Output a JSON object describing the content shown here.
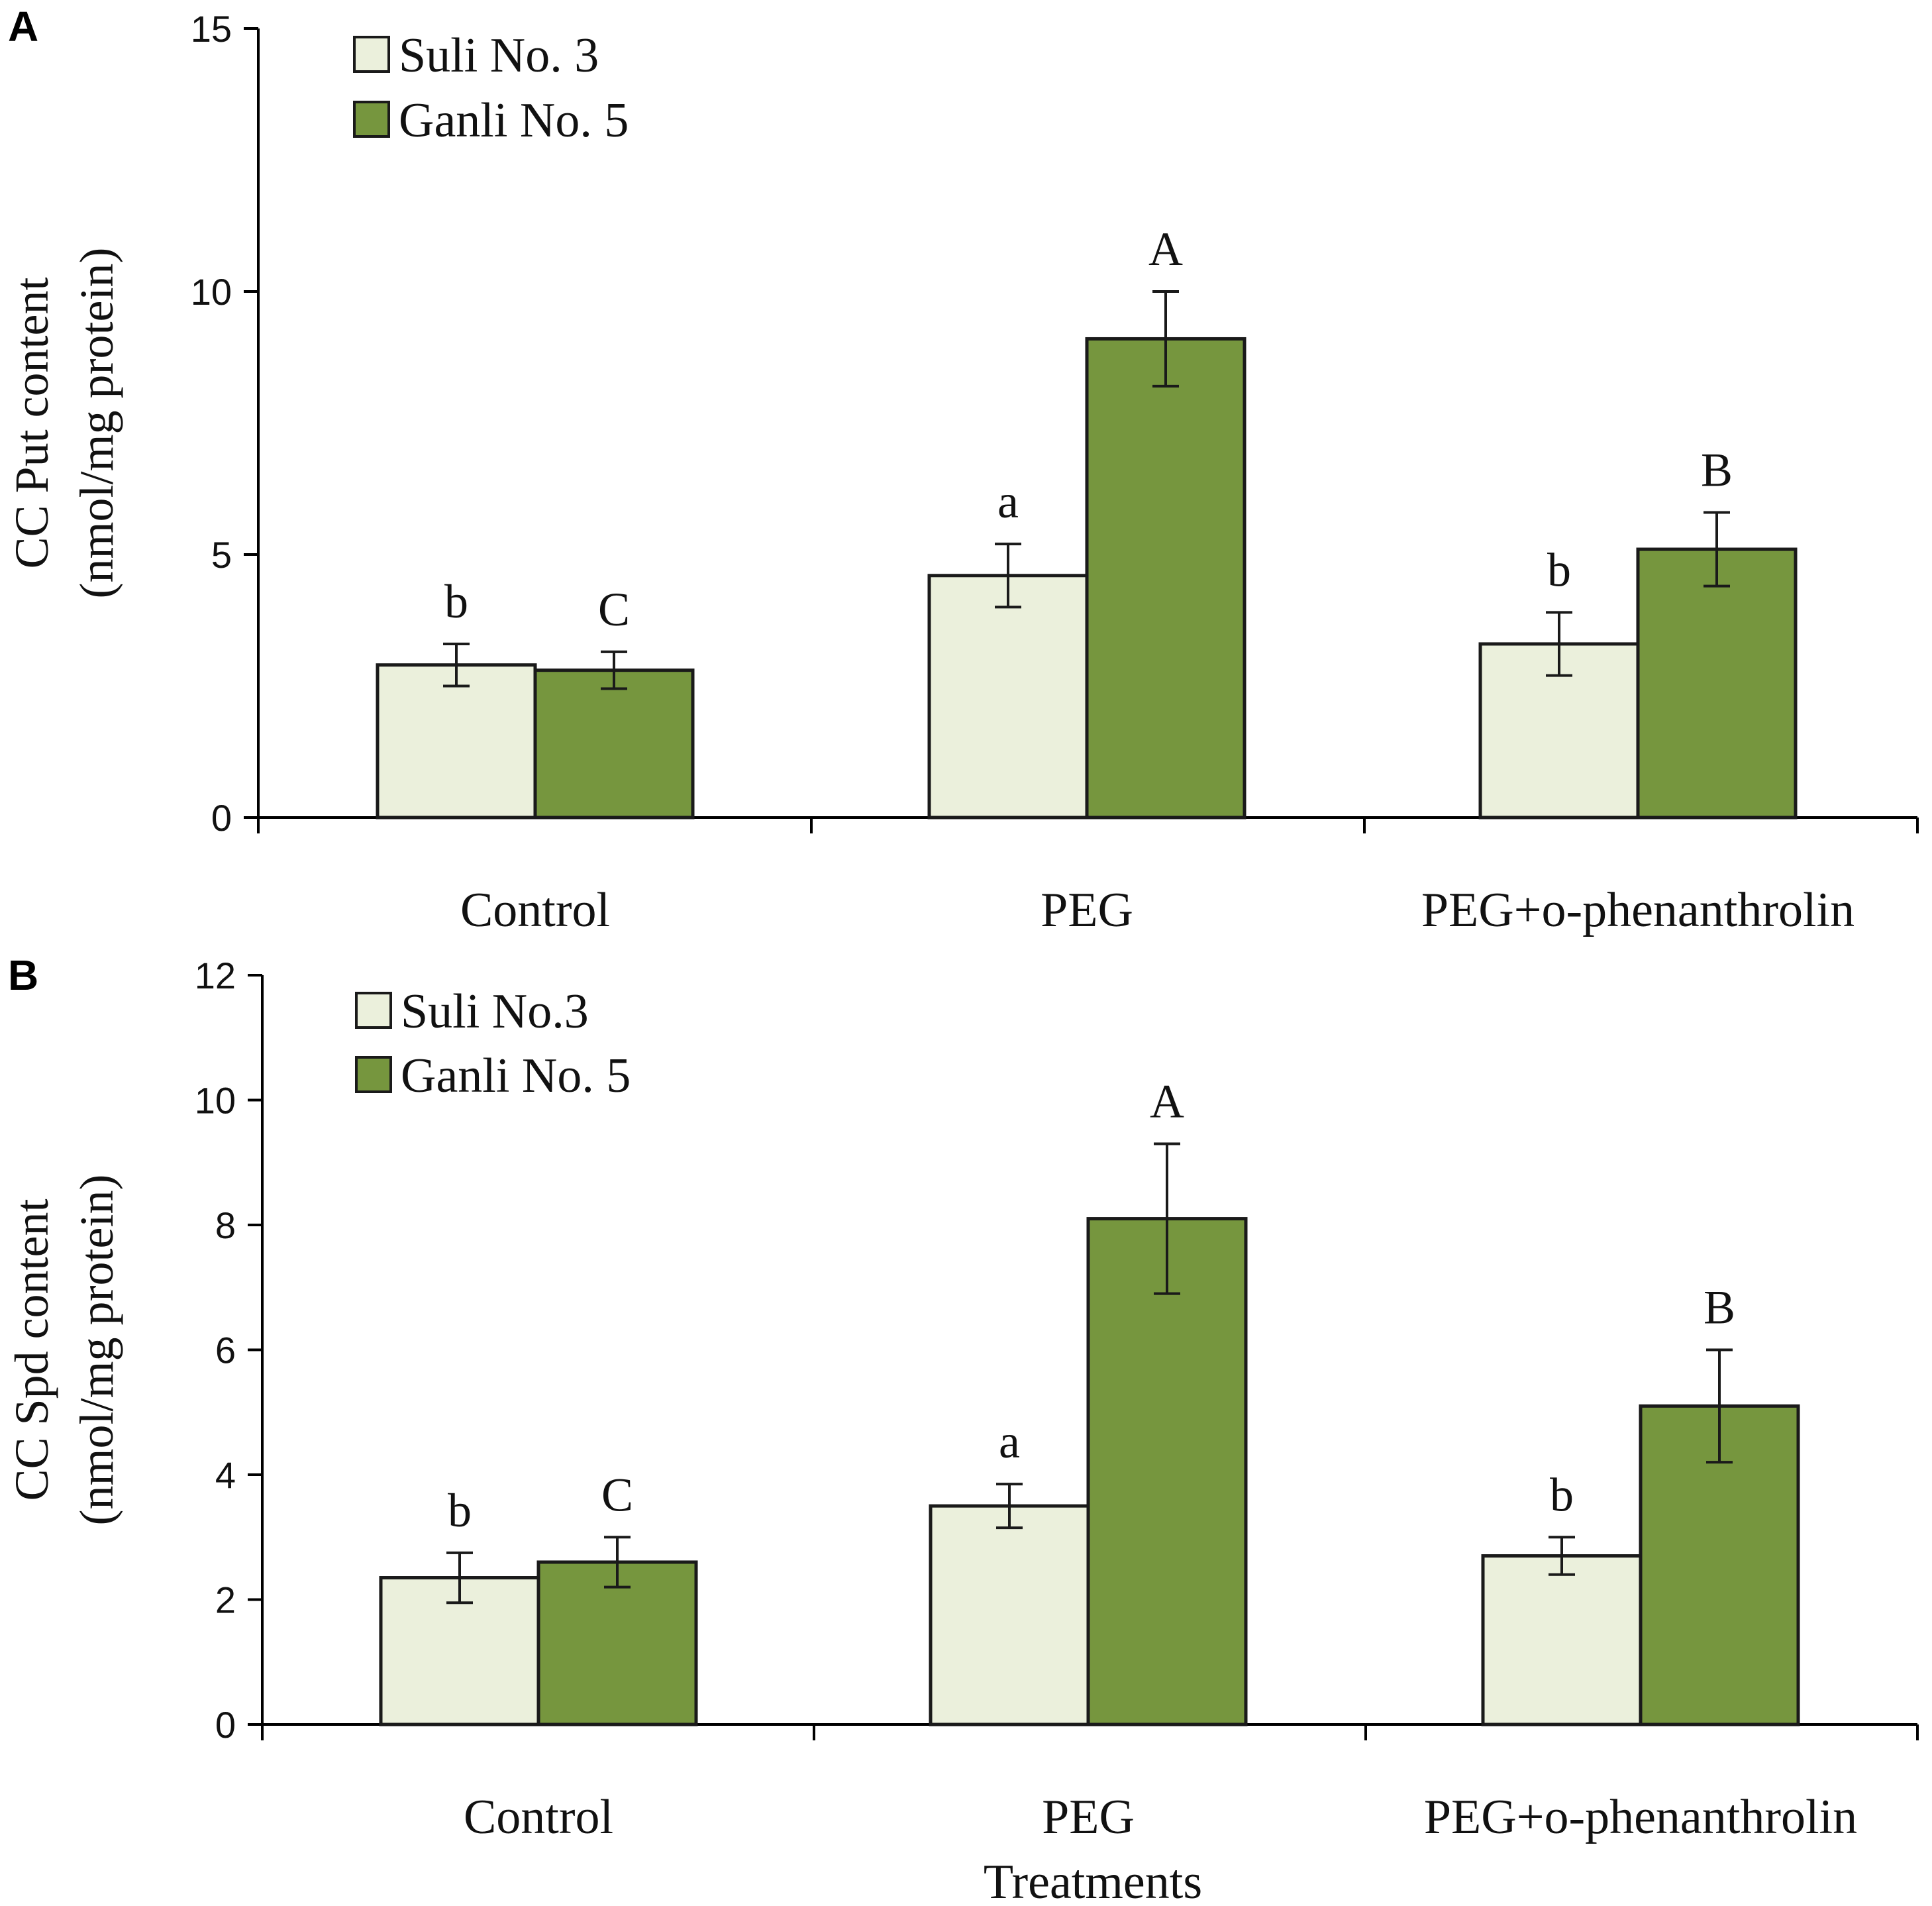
{
  "colors": {
    "suli": "#ebf0dc",
    "ganli": "#76963e",
    "axis": "#000000",
    "stroke": "#1a1a1a"
  },
  "xlabel_bottom": "Treatments",
  "chart_data": [
    {
      "panel": "A",
      "type": "bar",
      "ylabel_line1": "CC Put content",
      "ylabel_line2": "(nmol/mg protein)",
      "ylim": [
        0,
        15
      ],
      "yticks": [
        "0",
        "5",
        "10",
        "15"
      ],
      "categories": [
        "Control",
        "PEG",
        "PEG+o-phenanthrolin"
      ],
      "series": [
        {
          "name": "Suli No. 3",
          "values": [
            2.9,
            4.6,
            3.3
          ],
          "errors": [
            0.4,
            0.6,
            0.6
          ],
          "labels": [
            "b",
            "a",
            "b"
          ]
        },
        {
          "name": "Ganli No. 5",
          "values": [
            2.8,
            9.1,
            5.1
          ],
          "errors": [
            0.35,
            0.9,
            0.7
          ],
          "labels": [
            "C",
            "A",
            "B"
          ]
        }
      ]
    },
    {
      "panel": "B",
      "type": "bar",
      "ylabel_line1": "CC Spd content",
      "ylabel_line2": "(nmol/mg protein)",
      "ylim": [
        0,
        12
      ],
      "yticks": [
        "0",
        "2",
        "4",
        "6",
        "8",
        "10",
        "12"
      ],
      "categories": [
        "Control",
        "PEG",
        "PEG+o-phenanthrolin"
      ],
      "series": [
        {
          "name": "Suli No.3",
          "values": [
            2.35,
            3.5,
            2.7
          ],
          "errors": [
            0.4,
            0.35,
            0.3
          ],
          "labels": [
            "b",
            "a",
            "b"
          ]
        },
        {
          "name": "Ganli No. 5",
          "values": [
            2.6,
            8.1,
            5.1
          ],
          "errors": [
            0.4,
            1.2,
            0.9
          ],
          "labels": [
            "C",
            "A",
            "B"
          ]
        }
      ]
    }
  ]
}
